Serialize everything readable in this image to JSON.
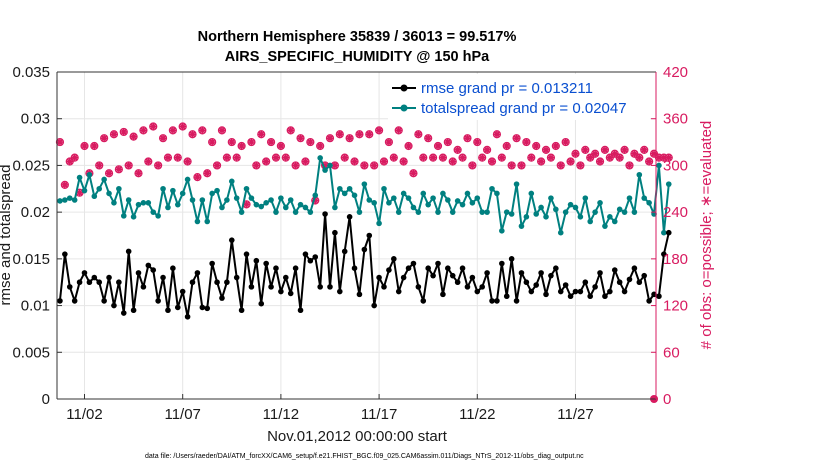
{
  "chart_data": {
    "type": "line",
    "title_line1": "Northern Hemisphere 35839 / 36013 = 99.517%",
    "title_line2": "AIRS_SPECIFIC_HUMIDITY @ 150 hPa",
    "xlabel": "Nov.01,2012 00:00:00 start",
    "ylabel_left": "rmse and totalspread",
    "ylabel_right": "# of obs: o=possible; ∗=evaluated",
    "footer": "data file: /Users/raeder/DAI/ATM_forcXX/CAM6_setup/f.e21.FHIST_BGC.f09_025.CAM6assim.011/Diags_NTrS_2012-11/obs_diag_output.nc",
    "x_range_days": [
      0.6,
      31.1
    ],
    "x_ticks": [
      {
        "day": 2,
        "label": "11/02"
      },
      {
        "day": 7,
        "label": "11/07"
      },
      {
        "day": 12,
        "label": "11/12"
      },
      {
        "day": 17,
        "label": "11/17"
      },
      {
        "day": 22,
        "label": "11/22"
      },
      {
        "day": 27,
        "label": "11/27"
      }
    ],
    "y_left": {
      "min": 0,
      "max": 0.035,
      "ticks": [
        "0",
        "0.005",
        "0.01",
        "0.015",
        "0.02",
        "0.025",
        "0.03",
        "0.035"
      ]
    },
    "y_right": {
      "min": 0,
      "max": 420,
      "ticks": [
        "0",
        "60",
        "120",
        "180",
        "240",
        "300",
        "360",
        "420"
      ]
    },
    "grid": true,
    "legend_position": "top-right",
    "colors": {
      "rmse": "#000000",
      "spread": "#008080",
      "obs": "#d81b60",
      "legend_text": "#0a4fd0"
    },
    "series": [
      {
        "name": "rmse grand pr = 0.013211",
        "key": "rmse",
        "x_start_day": 0.75,
        "x_step_day": 0.25,
        "values": [
          0.0105,
          0.0155,
          0.012,
          0.0105,
          0.0125,
          0.0135,
          0.0125,
          0.013,
          0.0125,
          0.0105,
          0.013,
          0.01,
          0.0125,
          0.0092,
          0.0158,
          0.0095,
          0.0135,
          0.012,
          0.0143,
          0.0138,
          0.0105,
          0.013,
          0.0095,
          0.014,
          0.0098,
          0.0115,
          0.0088,
          0.0125,
          0.0135,
          0.0098,
          0.0097,
          0.0145,
          0.0125,
          0.0108,
          0.0125,
          0.017,
          0.013,
          0.0095,
          0.0155,
          0.012,
          0.0148,
          0.0102,
          0.0145,
          0.012,
          0.014,
          0.0115,
          0.013,
          0.0113,
          0.014,
          0.0095,
          0.0155,
          0.0148,
          0.0152,
          0.012,
          0.0198,
          0.012,
          0.0178,
          0.0115,
          0.0158,
          0.0195,
          0.014,
          0.0112,
          0.016,
          0.0175,
          0.01,
          0.013,
          0.012,
          0.0138,
          0.015,
          0.0115,
          0.013,
          0.014,
          0.0145,
          0.012,
          0.0105,
          0.014,
          0.0132,
          0.0145,
          0.0112,
          0.014,
          0.0132,
          0.0125,
          0.014,
          0.012,
          0.013,
          0.0115,
          0.012,
          0.0135,
          0.0105,
          0.0105,
          0.0145,
          0.011,
          0.015,
          0.0105,
          0.0135,
          0.0125,
          0.0115,
          0.0122,
          0.0135,
          0.0112,
          0.0132,
          0.014,
          0.0115,
          0.0122,
          0.011,
          0.0115,
          0.0115,
          0.0125,
          0.011,
          0.012,
          0.0135,
          0.011,
          0.0115,
          0.0138,
          0.0125,
          0.0115,
          0.0128,
          0.014,
          0.0125,
          0.0132,
          0.0105,
          0.0112,
          0.011,
          0.0155,
          0.0178
        ]
      },
      {
        "name": "totalspread grand pr = 0.02047",
        "key": "spread",
        "x_start_day": 0.75,
        "x_step_day": 0.25,
        "values": [
          0.0212,
          0.0213,
          0.0215,
          0.0213,
          0.0237,
          0.0223,
          0.024,
          0.0217,
          0.0225,
          0.0235,
          0.022,
          0.021,
          0.0225,
          0.0196,
          0.0213,
          0.0195,
          0.0208,
          0.021,
          0.021,
          0.02,
          0.0196,
          0.0225,
          0.0205,
          0.0223,
          0.0208,
          0.022,
          0.0235,
          0.0213,
          0.019,
          0.0213,
          0.019,
          0.022,
          0.0223,
          0.0205,
          0.0213,
          0.0233,
          0.0215,
          0.02,
          0.0225,
          0.0215,
          0.0208,
          0.0206,
          0.021,
          0.0213,
          0.02,
          0.0215,
          0.0205,
          0.0213,
          0.02,
          0.0208,
          0.0205,
          0.02,
          0.0218,
          0.0258,
          0.0245,
          0.025,
          0.0205,
          0.0225,
          0.022,
          0.0225,
          0.0218,
          0.02,
          0.023,
          0.0213,
          0.021,
          0.0188,
          0.0225,
          0.021,
          0.0215,
          0.02,
          0.022,
          0.0215,
          0.0205,
          0.02,
          0.022,
          0.0208,
          0.0215,
          0.02,
          0.022,
          0.0213,
          0.02,
          0.0212,
          0.0208,
          0.022,
          0.021,
          0.0215,
          0.02,
          0.02,
          0.0225,
          0.022,
          0.018,
          0.02,
          0.0198,
          0.023,
          0.0185,
          0.0195,
          0.022,
          0.0198,
          0.0205,
          0.0195,
          0.0215,
          0.0203,
          0.0178,
          0.02,
          0.0208,
          0.0205,
          0.0195,
          0.0215,
          0.019,
          0.02,
          0.021,
          0.0185,
          0.0195,
          0.019,
          0.0203,
          0.02,
          0.0215,
          0.02,
          0.024,
          0.0215,
          0.021,
          0.0198,
          0.025,
          0.0178,
          0.023
        ]
      },
      {
        "name": "obs possible",
        "key": "possible",
        "x_start_day": 0.75,
        "x_step_day": 0.25,
        "axis": "right",
        "values": [
          330,
          275,
          305,
          310,
          265,
          325,
          290,
          325,
          300,
          335,
          290,
          340,
          295,
          343,
          300,
          337,
          290,
          345,
          305,
          350,
          300,
          335,
          310,
          345,
          310,
          350,
          305,
          340,
          285,
          345,
          290,
          330,
          300,
          345,
          310,
          330,
          310,
          325,
          250,
          330,
          300,
          340,
          305,
          330,
          310,
          325,
          310,
          345,
          300,
          335,
          305,
          330,
          255,
          325,
          300,
          335,
          300,
          340,
          310,
          335,
          305,
          340,
          300,
          340,
          300,
          345,
          305,
          330,
          310,
          345,
          305,
          325,
          290,
          340,
          310,
          335,
          310,
          325,
          310,
          330,
          305,
          320,
          310,
          335,
          300,
          330,
          310,
          320,
          305,
          340,
          310,
          325,
          300,
          335,
          300,
          330,
          310,
          325,
          305,
          320,
          310,
          325,
          300,
          330,
          305,
          315,
          300,
          320,
          310,
          315,
          305,
          320,
          310,
          315,
          310,
          320,
          300,
          315,
          310,
          320,
          305,
          315,
          310,
          310,
          310
        ]
      },
      {
        "name": "obs evaluated",
        "key": "evaluated",
        "x_start_day": 0.75,
        "x_step_day": 0.25,
        "axis": "right",
        "values": [
          330,
          275,
          305,
          310,
          265,
          325,
          290,
          325,
          300,
          335,
          290,
          340,
          295,
          343,
          300,
          337,
          290,
          345,
          305,
          350,
          300,
          335,
          310,
          345,
          310,
          350,
          305,
          340,
          285,
          345,
          290,
          330,
          300,
          345,
          310,
          330,
          310,
          325,
          250,
          330,
          300,
          340,
          305,
          330,
          310,
          325,
          310,
          345,
          300,
          335,
          305,
          330,
          255,
          325,
          300,
          335,
          300,
          340,
          310,
          335,
          305,
          340,
          300,
          340,
          300,
          345,
          305,
          330,
          310,
          345,
          305,
          325,
          290,
          340,
          310,
          335,
          310,
          325,
          310,
          330,
          305,
          320,
          310,
          335,
          300,
          330,
          310,
          320,
          305,
          340,
          310,
          325,
          300,
          335,
          300,
          330,
          310,
          325,
          305,
          320,
          310,
          325,
          300,
          330,
          305,
          315,
          300,
          320,
          310,
          315,
          305,
          320,
          310,
          315,
          310,
          320,
          300,
          315,
          310,
          320,
          305,
          315,
          310,
          310,
          310
        ]
      }
    ]
  }
}
